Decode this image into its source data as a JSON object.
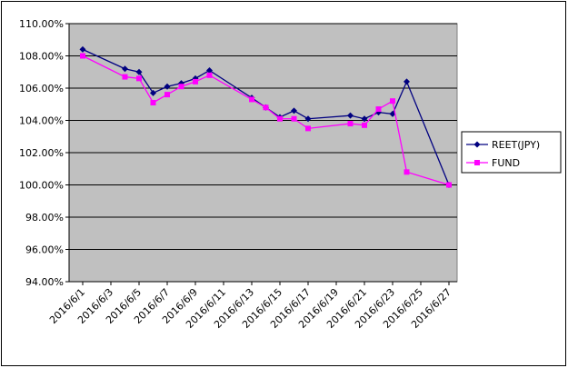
{
  "chart_data": {
    "type": "line",
    "x": [
      "2016/6/1",
      "2016/6/4",
      "2016/6/5",
      "2016/6/6",
      "2016/6/7",
      "2016/6/8",
      "2016/6/9",
      "2016/6/10",
      "2016/6/13",
      "2016/6/14",
      "2016/6/15",
      "2016/6/16",
      "2016/6/17",
      "2016/6/20",
      "2016/6/21",
      "2016/6/22",
      "2016/6/23",
      "2016/6/24",
      "2016/6/27"
    ],
    "series": [
      {
        "name": "REET(JPY)",
        "color": "#000080",
        "marker": "diamond",
        "values": [
          108.4,
          107.2,
          107.0,
          105.7,
          106.1,
          106.3,
          106.6,
          107.1,
          105.4,
          104.8,
          104.2,
          104.6,
          104.1,
          104.3,
          104.1,
          104.5,
          104.4,
          106.4,
          100.0
        ]
      },
      {
        "name": "FUND",
        "color": "#ff00ff",
        "marker": "square",
        "values": [
          108.0,
          106.7,
          106.6,
          105.1,
          105.6,
          106.1,
          106.4,
          106.8,
          105.3,
          104.8,
          104.1,
          104.1,
          103.5,
          103.8,
          103.7,
          104.7,
          105.2,
          100.8,
          100.0
        ]
      }
    ],
    "xticks": [
      "2016/6/1",
      "2016/6/3",
      "2016/6/5",
      "2016/6/7",
      "2016/6/9",
      "2016/6/11",
      "2016/6/13",
      "2016/6/15",
      "2016/6/17",
      "2016/6/19",
      "2016/6/21",
      "2016/6/23",
      "2016/6/25",
      "2016/6/27"
    ],
    "ylim": [
      94,
      110
    ],
    "yticks": [
      {
        "value": 94,
        "label": "94.00%"
      },
      {
        "value": 96,
        "label": "96.00%"
      },
      {
        "value": 98,
        "label": "98.00%"
      },
      {
        "value": 100,
        "label": "100.00%"
      },
      {
        "value": 102,
        "label": "102.00%"
      },
      {
        "value": 104,
        "label": "104.00%"
      },
      {
        "value": 106,
        "label": "106.00%"
      },
      {
        "value": 108,
        "label": "108.00%"
      },
      {
        "value": 110,
        "label": "110.00%"
      }
    ],
    "grid": true,
    "plot_background": "#c0c0c0",
    "legend": "right"
  }
}
